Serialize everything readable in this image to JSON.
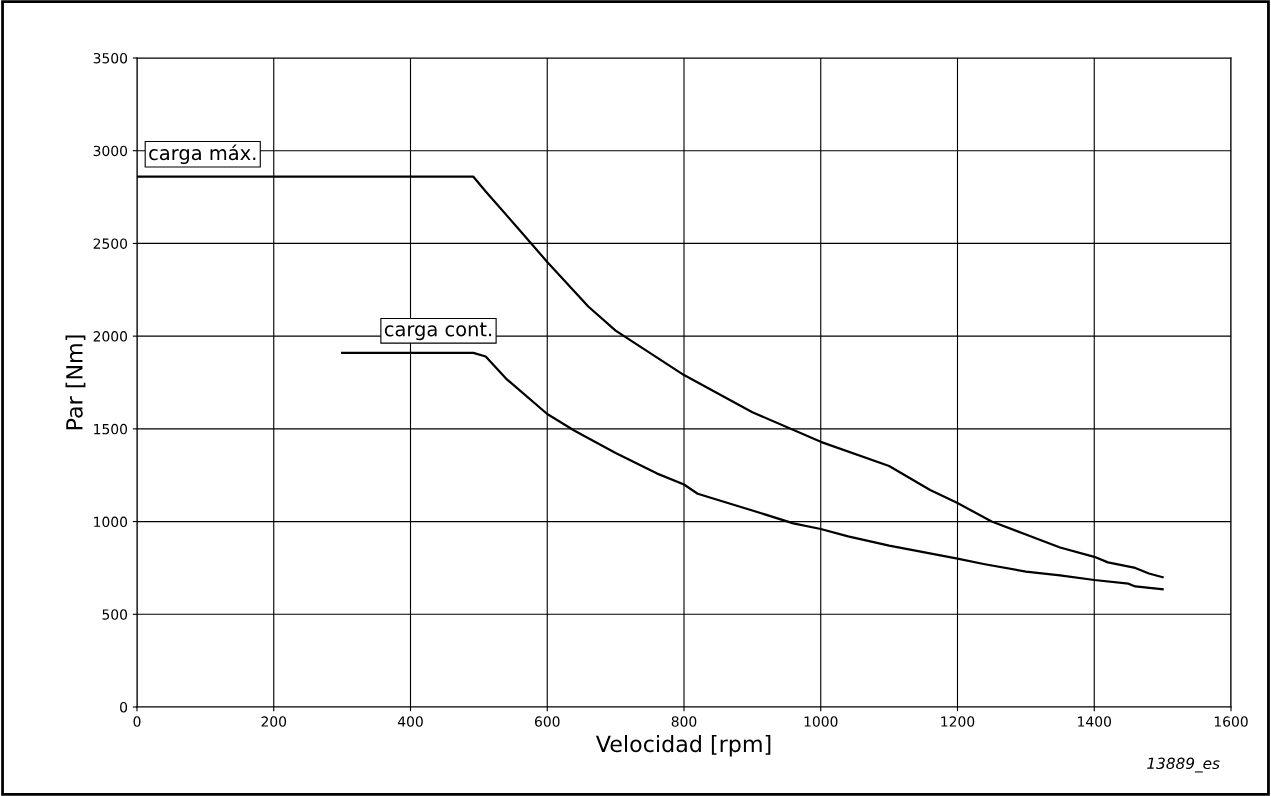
{
  "chart_data": {
    "type": "line",
    "xlabel": "Velocidad [rpm]",
    "ylabel": "Par [Nm]",
    "xlim": [
      0,
      1600
    ],
    "ylim": [
      0,
      3500
    ],
    "xticks": [
      0,
      200,
      400,
      600,
      800,
      1000,
      1200,
      1400,
      1600
    ],
    "yticks": [
      0,
      500,
      1000,
      1500,
      2000,
      2500,
      3000,
      3500
    ],
    "grid": true,
    "legend": false,
    "marker": "none",
    "line_style": "solid",
    "annotations": [
      "13889_es"
    ],
    "series": [
      {
        "name": "carga máx.",
        "color": "#000000",
        "x": [
          0,
          492,
          510,
          560,
          600,
          660,
          700,
          800,
          900,
          1000,
          1100,
          1160,
          1200,
          1250,
          1300,
          1350,
          1400,
          1420,
          1460,
          1480,
          1500
        ],
        "values": [
          2860,
          2860,
          2780,
          2570,
          2400,
          2160,
          2030,
          1790,
          1590,
          1430,
          1300,
          1170,
          1100,
          1000,
          930,
          860,
          810,
          780,
          750,
          720,
          700
        ]
      },
      {
        "name": "carga cont.",
        "color": "#000000",
        "x": [
          300,
          492,
          510,
          540,
          600,
          640,
          700,
          760,
          800,
          820,
          900,
          960,
          1000,
          1040,
          1100,
          1200,
          1240,
          1300,
          1350,
          1400,
          1450,
          1460,
          1500
        ],
        "values": [
          1910,
          1910,
          1890,
          1770,
          1580,
          1490,
          1370,
          1260,
          1200,
          1150,
          1060,
          990,
          960,
          920,
          870,
          800,
          770,
          730,
          710,
          685,
          665,
          650,
          635
        ]
      }
    ]
  }
}
